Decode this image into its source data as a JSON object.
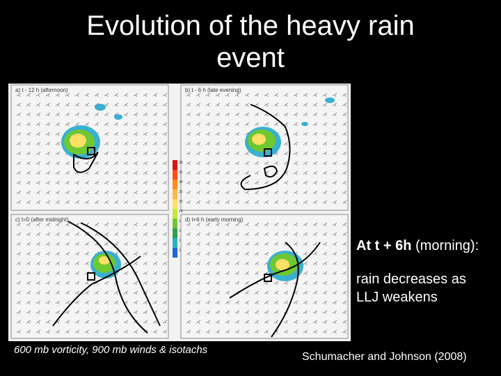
{
  "title": [
    "Evolution of the heavy rain",
    "event"
  ],
  "figure": {
    "panels": [
      {
        "label": "a) t - 12 h (afternoon)"
      },
      {
        "label": "b) t - 6 h (late evening)"
      },
      {
        "label": "c) t=0 (after midnight)"
      },
      {
        "label": "d) t+6 h (early morning)"
      }
    ],
    "colorbar": {
      "ticks": [
        "28",
        "26",
        "24",
        "22",
        "20",
        "18",
        "16",
        "14",
        "12",
        "10"
      ],
      "colors": [
        "#e01010",
        "#ff4b14",
        "#ff8c1a",
        "#ffb84d",
        "#ffe066",
        "#c8e63c",
        "#6ec832",
        "#2fa04a",
        "#26b4c8",
        "#1e64dc"
      ]
    }
  },
  "caption_left": "600 mb vorticity, 900 mb winds & isotachs",
  "side_text": {
    "bold": "At t + 6h",
    "rest": " (morning):",
    "line2a": "rain decreases as",
    "line2b": "LLJ weakens"
  },
  "citation": "Schumacher and Johnson (2008)"
}
